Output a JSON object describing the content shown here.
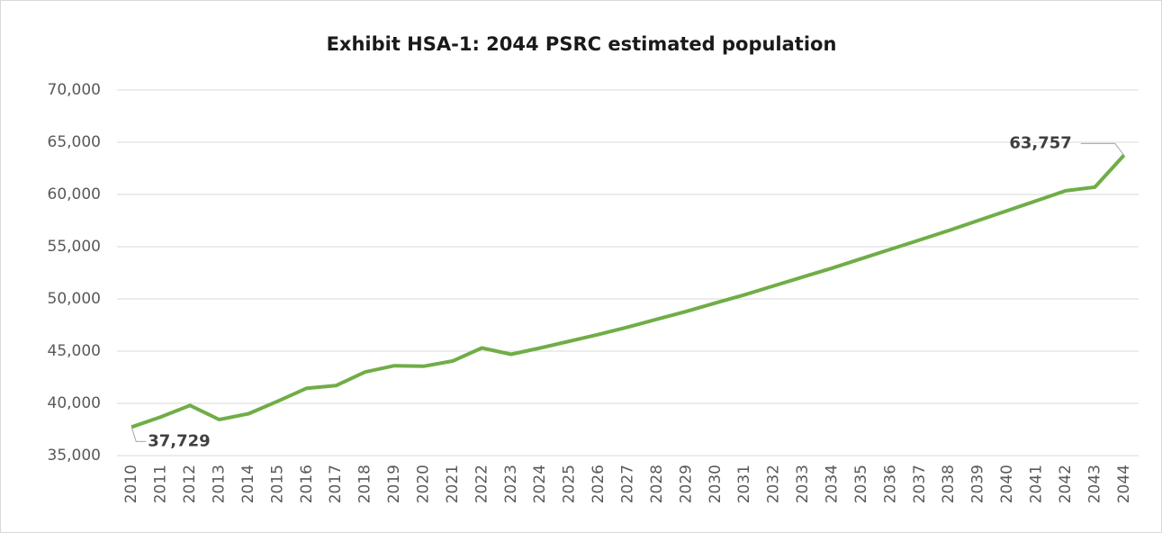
{
  "chart_data": {
    "type": "line",
    "title": "Exhibit HSA-1:  2044 PSRC estimated population",
    "categories": [
      "2010",
      "2011",
      "2012",
      "2013",
      "2014",
      "2015",
      "2016",
      "2017",
      "2018",
      "2019",
      "2020",
      "2021",
      "2022",
      "2023",
      "2024",
      "2025",
      "2026",
      "2027",
      "2028",
      "2029",
      "2030",
      "2031",
      "2032",
      "2033",
      "2034",
      "2035",
      "2036",
      "2037",
      "2038",
      "2039",
      "2040",
      "2041",
      "2042",
      "2043",
      "2044"
    ],
    "series": [
      {
        "name": "Population",
        "color": "#70ad47",
        "values": [
          37729,
          38700,
          39800,
          38450,
          39000,
          40200,
          41450,
          41700,
          43000,
          43600,
          43550,
          44050,
          45300,
          44700,
          45300,
          45950,
          46600,
          47300,
          48050,
          48800,
          49600,
          50400,
          51250,
          52100,
          52950,
          53850,
          54750,
          55650,
          56550,
          57500,
          58450,
          59400,
          60350,
          60700,
          63757
        ],
        "value_labels": [
          "37,729",
          null,
          null,
          null,
          null,
          null,
          null,
          null,
          null,
          null,
          null,
          null,
          null,
          null,
          null,
          null,
          null,
          null,
          null,
          null,
          null,
          null,
          null,
          null,
          null,
          null,
          null,
          null,
          null,
          null,
          null,
          null,
          null,
          null,
          "63,757"
        ]
      }
    ],
    "ylim": [
      35000,
      70000
    ],
    "yticks": [
      {
        "value": 35000,
        "label": "35,000"
      },
      {
        "value": 40000,
        "label": "40,000"
      },
      {
        "value": 45000,
        "label": "45,000"
      },
      {
        "value": 50000,
        "label": "50,000"
      },
      {
        "value": 55000,
        "label": "55,000"
      },
      {
        "value": 60000,
        "label": "60,000"
      },
      {
        "value": 65000,
        "label": "65,000"
      },
      {
        "value": 70000,
        "label": "70,000"
      }
    ],
    "grid": true
  }
}
